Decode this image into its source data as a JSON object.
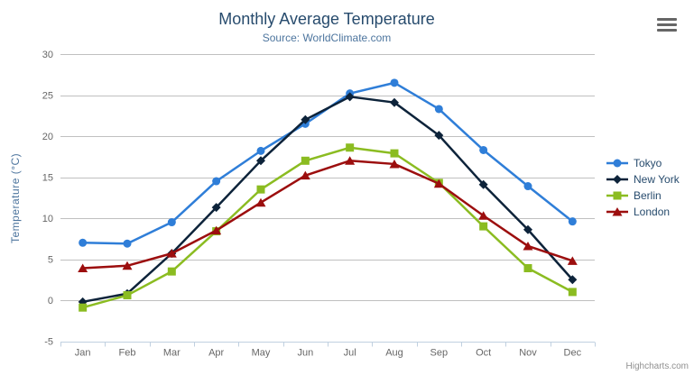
{
  "chart": {
    "credits_label": "Highcharts.com",
    "export_menu_icon": "hamburger-icon"
  },
  "colors": {
    "title": "#274b6d",
    "subtitle": "#4d759e",
    "axis_title": "#4d759e",
    "tick_label": "#666666",
    "grid_line": "#c0c0c0",
    "axis_line": "#c0d0e0",
    "legend_text": "#274b6d",
    "credits": "#909090"
  },
  "chart_data": {
    "type": "line",
    "title": "Monthly Average Temperature",
    "subtitle": "Source: WorldClimate.com",
    "xlabel": "",
    "ylabel": "Temperature (°C)",
    "categories": [
      "Jan",
      "Feb",
      "Mar",
      "Apr",
      "May",
      "Jun",
      "Jul",
      "Aug",
      "Sep",
      "Oct",
      "Nov",
      "Dec"
    ],
    "yticks": [
      -5,
      0,
      5,
      10,
      15,
      20,
      25,
      30
    ],
    "ylim": [
      -5,
      30
    ],
    "grid": true,
    "legend_position": "right",
    "series": [
      {
        "name": "Tokyo",
        "color": "#2f7ed8",
        "marker": "circle",
        "values": [
          7.0,
          6.9,
          9.5,
          14.5,
          18.2,
          21.5,
          25.2,
          26.5,
          23.3,
          18.3,
          13.9,
          9.6
        ]
      },
      {
        "name": "New York",
        "color": "#0d233a",
        "marker": "diamond",
        "values": [
          -0.2,
          0.8,
          5.7,
          11.3,
          17.0,
          22.0,
          24.8,
          24.1,
          20.1,
          14.1,
          8.6,
          2.5
        ]
      },
      {
        "name": "Berlin",
        "color": "#8bbc21",
        "marker": "square",
        "values": [
          -0.9,
          0.6,
          3.5,
          8.4,
          13.5,
          17.0,
          18.6,
          17.9,
          14.3,
          9.0,
          3.9,
          1.0
        ]
      },
      {
        "name": "London",
        "color": "#9c0e0e",
        "marker": "triangle",
        "values": [
          3.9,
          4.2,
          5.7,
          8.5,
          11.9,
          15.2,
          17.0,
          16.6,
          14.2,
          10.3,
          6.6,
          4.8
        ]
      }
    ]
  }
}
